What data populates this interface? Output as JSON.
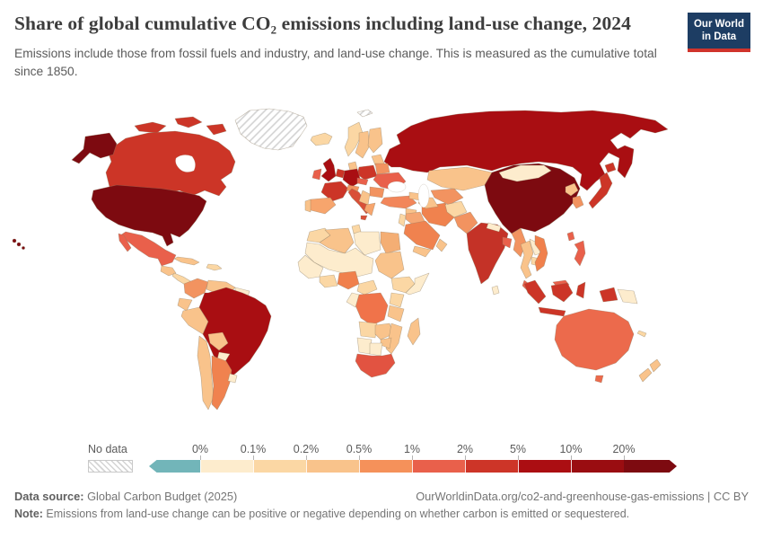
{
  "header": {
    "title": "Share of global cumulative CO₂ emissions including land-use change, 2024",
    "subtitle": "Emissions include those from fossil fuels and industry, and land-use change. This is measured as the cumulative total since 1850.",
    "logo": {
      "line1": "Our World",
      "line2": "in Data",
      "bg_color": "#1d3d63",
      "bar_color": "#d0342c"
    }
  },
  "legend": {
    "no_data_label": "No data",
    "tick_labels": [
      "0%",
      "0.1%",
      "0.2%",
      "0.5%",
      "1%",
      "2%",
      "5%",
      "10%",
      "20%"
    ],
    "negative_color": "#72b5b9",
    "bin_colors": [
      "#fdeccd",
      "#fbd7a4",
      "#f9c38b",
      "#f5915a",
      "#e9604b",
      "#cd3528",
      "#ab0e12",
      "#9a0d11",
      "#7d0a10"
    ],
    "segment_widths": [
      57,
      59,
      59,
      59,
      59,
      59,
      59,
      59,
      59,
      59
    ]
  },
  "footer": {
    "source_label": "Data source:",
    "source_value": " Global Carbon Budget (2025)",
    "right_text": "OurWorldinData.org/co2-and-greenhouse-gas-emissions | CC BY",
    "note_label": "Note:",
    "note_value": " Emissions from land-use change can be positive or negative depending on whether carbon is emitted or sequestered."
  },
  "chart_data": {
    "type": "heatmap",
    "subtype": "choropleth-world-map",
    "title": "Share of global cumulative CO₂ emissions including land-use change, 2024",
    "legend_bins": [
      "negative (<0%)",
      "0–0.1%",
      "0.1–0.2%",
      "0.2–0.5%",
      "0.5–1%",
      "1–2%",
      "2–5%",
      "5–10%",
      "10–20%",
      ">20%"
    ],
    "no_data_regions": [
      "Greenland",
      "Svalbard"
    ],
    "country_bins": {
      "United States": ">20%",
      "China": ">20%",
      "Russia": "5–10%",
      "Brazil": "5–10%",
      "Germany": "5–10%",
      "United Kingdom": "5–10%",
      "Canada": "2–5%",
      "India": "2–5%",
      "Japan": "2–5%",
      "Indonesia": "2–5%",
      "France": "2–5%",
      "Poland": "2–5%",
      "Mexico": "1–2%",
      "Ukraine": "1–2%",
      "Australia": "1–2%",
      "Italy": "1–2%",
      "South Africa": "1–2%",
      "Malaysia": "1–2%",
      "Philippines": "1–2%",
      "Ireland": "1–2%",
      "Argentina": "0.5–1%",
      "Saudi Arabia": "0.5–1%",
      "Iran": "0.5–1%",
      "Turkey": "0.5–1%",
      "Spain": "0.5–1%",
      "Nigeria": "0.5–1%",
      "DR Congo": "0.5–1%",
      "Pakistan": "0.5–1%",
      "Colombia": "0.5–1%",
      "Vietnam": "0.5–1%",
      "Myanmar": "0.5–1%",
      "South Korea": "0.5–1%",
      "Uzbekistan": "0.5–1%",
      "Kazakhstan": "0.2–0.5%",
      "Peru": "0.2–0.5%",
      "Chile": "0.2–0.5%",
      "Bolivia": "0.2–0.5%",
      "Venezuela": "0.2–0.5%",
      "Sweden": "0.2–0.5%",
      "Finland": "0.2–0.5%",
      "Thailand": "0.2–0.5%",
      "Algeria": "0.2–0.5%",
      "Egypt": "0.2–0.5%",
      "Sudan": "0.2–0.5%",
      "Madagascar": "0.2–0.5%",
      "Tanzania": "0.2–0.5%",
      "New Zealand": "0.2–0.5%",
      "Iraq": "0.2–0.5%",
      "North Korea": "0.2–0.5%",
      "Norway": "0.1–0.2%",
      "Iceland": "0.1–0.2%",
      "Morocco": "0.1–0.2%",
      "Ethiopia": "0.1–0.2%",
      "Kenya": "0.1–0.2%",
      "Angola": "0.1–0.2%",
      "Afghanistan": "0.1–0.2%",
      "Cambodia": "0.1–0.2%",
      "Mongolia": "0–0.1%",
      "Libya": "0–0.1%",
      "Nepal": "0–0.1%",
      "Laos": "0–0.1%",
      "Sri Lanka": "0–0.1%",
      "Paraguay": "0–0.1%",
      "Uruguay": "0–0.1%",
      "Papua New Guinea": "0–0.1%",
      "Namibia": "0–0.1%",
      "Botswana": "0–0.1%",
      "Somalia": "0–0.1%"
    }
  },
  "map": {
    "countries": [
      {
        "id": "greenland",
        "color": "pattern:no-data"
      },
      {
        "id": "svalbard",
        "color": "pattern:no-data"
      },
      {
        "id": "usa",
        "color": "#7d0a10"
      },
      {
        "id": "canada",
        "color": "#cc3527"
      },
      {
        "id": "mexico",
        "color": "#e9604b"
      },
      {
        "id": "guatemala",
        "color": "#f9c38b"
      },
      {
        "id": "central-america",
        "color": "#fbd7a4"
      },
      {
        "id": "cuba",
        "color": "#f9c38b"
      },
      {
        "id": "hispaniola",
        "color": "#fbd7a4"
      },
      {
        "id": "colombia",
        "color": "#f29360"
      },
      {
        "id": "venezuela",
        "color": "#f9c38b"
      },
      {
        "id": "guyanas",
        "color": "#fdeccd"
      },
      {
        "id": "ecuador",
        "color": "#f9c38b"
      },
      {
        "id": "peru",
        "color": "#f9c38b"
      },
      {
        "id": "brazil",
        "color": "#a90e12"
      },
      {
        "id": "bolivia",
        "color": "#f9c38b"
      },
      {
        "id": "paraguay",
        "color": "#fdeccd"
      },
      {
        "id": "chile",
        "color": "#f9c38b"
      },
      {
        "id": "argentina",
        "color": "#f0824f"
      },
      {
        "id": "uruguay",
        "color": "#fdeccd"
      },
      {
        "id": "iceland",
        "color": "#fbd7a4"
      },
      {
        "id": "uk",
        "color": "#a90e12"
      },
      {
        "id": "ireland",
        "color": "#e9604b"
      },
      {
        "id": "norway",
        "color": "#fbd7a4"
      },
      {
        "id": "sweden",
        "color": "#f9c38b"
      },
      {
        "id": "finland",
        "color": "#f9c38b"
      },
      {
        "id": "denmark",
        "color": "#f9c38b"
      },
      {
        "id": "germany",
        "color": "#a90e12"
      },
      {
        "id": "benelux",
        "color": "#cc3527"
      },
      {
        "id": "france",
        "color": "#cc3527"
      },
      {
        "id": "spain",
        "color": "#f7a56d"
      },
      {
        "id": "portugal",
        "color": "#f9c38b"
      },
      {
        "id": "italy",
        "color": "#d94f38"
      },
      {
        "id": "alpine",
        "color": "#f29360"
      },
      {
        "id": "czech-slovakia",
        "color": "#e9604b"
      },
      {
        "id": "poland",
        "color": "#cc3527"
      },
      {
        "id": "baltics",
        "color": "#f9c38b"
      },
      {
        "id": "belarus",
        "color": "#f29360"
      },
      {
        "id": "ukraine",
        "color": "#e9604b"
      },
      {
        "id": "romania",
        "color": "#f29360"
      },
      {
        "id": "balkans",
        "color": "#f9c38b"
      },
      {
        "id": "greece",
        "color": "#f7a56d"
      },
      {
        "id": "russia",
        "color": "#a90e12"
      },
      {
        "id": "kazakhstan",
        "color": "#f9c38b"
      },
      {
        "id": "uzbekistan",
        "color": "#f29360"
      },
      {
        "id": "turkmenistan",
        "color": "#f9c38b"
      },
      {
        "id": "caucasus",
        "color": "#f9c38b"
      },
      {
        "id": "turkey",
        "color": "#f2865a"
      },
      {
        "id": "syria",
        "color": "#f9c38b"
      },
      {
        "id": "iraq",
        "color": "#f5a673"
      },
      {
        "id": "israel-jordan",
        "color": "#fbd7a4"
      },
      {
        "id": "saudi-arabia",
        "color": "#f0824f"
      },
      {
        "id": "yemen",
        "color": "#f9c38b"
      },
      {
        "id": "oman",
        "color": "#f9c38b"
      },
      {
        "id": "iran",
        "color": "#f0824e"
      },
      {
        "id": "afghanistan",
        "color": "#fbd7a4"
      },
      {
        "id": "pakistan",
        "color": "#f29360"
      },
      {
        "id": "india",
        "color": "#c43227"
      },
      {
        "id": "nepal",
        "color": "#fdeccd"
      },
      {
        "id": "bangladesh",
        "color": "#e9604b"
      },
      {
        "id": "sri-lanka",
        "color": "#fdeccd"
      },
      {
        "id": "myanmar",
        "color": "#f29360"
      },
      {
        "id": "thailand",
        "color": "#f9c38b"
      },
      {
        "id": "laos",
        "color": "#fdeccd"
      },
      {
        "id": "cambodia",
        "color": "#fbd7a4"
      },
      {
        "id": "vietnam",
        "color": "#f0804c"
      },
      {
        "id": "malaysia",
        "color": "#e9604b"
      },
      {
        "id": "china",
        "color": "#7d0a10"
      },
      {
        "id": "mongolia",
        "color": "#fdeccd"
      },
      {
        "id": "north-korea",
        "color": "#f9c38b"
      },
      {
        "id": "south-korea",
        "color": "#f29360"
      },
      {
        "id": "japan",
        "color": "#cc3527"
      },
      {
        "id": "taiwan",
        "color": "#e9604b"
      },
      {
        "id": "philippines",
        "color": "#e9604b"
      },
      {
        "id": "indonesia",
        "color": "#cc3527"
      },
      {
        "id": "png",
        "color": "#fdeccd"
      },
      {
        "id": "morocco",
        "color": "#fbd7a4"
      },
      {
        "id": "algeria",
        "color": "#f9c38b"
      },
      {
        "id": "tunisia",
        "color": "#fbd7a4"
      },
      {
        "id": "libya",
        "color": "#fdeccd"
      },
      {
        "id": "egypt",
        "color": "#f4ae74"
      },
      {
        "id": "sahel",
        "color": "#fdeccd"
      },
      {
        "id": "sudan",
        "color": "#f9c38b"
      },
      {
        "id": "west-africa",
        "color": "#fdeccd"
      },
      {
        "id": "ghana-ivory",
        "color": "#fbd7a4"
      },
      {
        "id": "nigeria",
        "color": "#f0804c"
      },
      {
        "id": "cameroon",
        "color": "#fbd7a4"
      },
      {
        "id": "ethiopia",
        "color": "#fbd7a4"
      },
      {
        "id": "somalia",
        "color": "#fdeccd"
      },
      {
        "id": "kenya",
        "color": "#fbd7a4"
      },
      {
        "id": "tanzania",
        "color": "#f9c38b"
      },
      {
        "id": "drc",
        "color": "#f0734a"
      },
      {
        "id": "congo-gabon",
        "color": "#fdeccd"
      },
      {
        "id": "angola",
        "color": "#fbd7a4"
      },
      {
        "id": "zambia",
        "color": "#f9c38b"
      },
      {
        "id": "zimbabwe",
        "color": "#f9c38b"
      },
      {
        "id": "mozambique",
        "color": "#f9c38b"
      },
      {
        "id": "namibia",
        "color": "#fdeccd"
      },
      {
        "id": "botswana",
        "color": "#fdeccd"
      },
      {
        "id": "south-africa",
        "color": "#e25341"
      },
      {
        "id": "madagascar",
        "color": "#f9c38b"
      },
      {
        "id": "australia",
        "color": "#ec6a4c"
      },
      {
        "id": "new-zealand",
        "color": "#f9c38b"
      },
      {
        "id": "new-caledonia",
        "color": "#fbd7a4"
      }
    ]
  }
}
